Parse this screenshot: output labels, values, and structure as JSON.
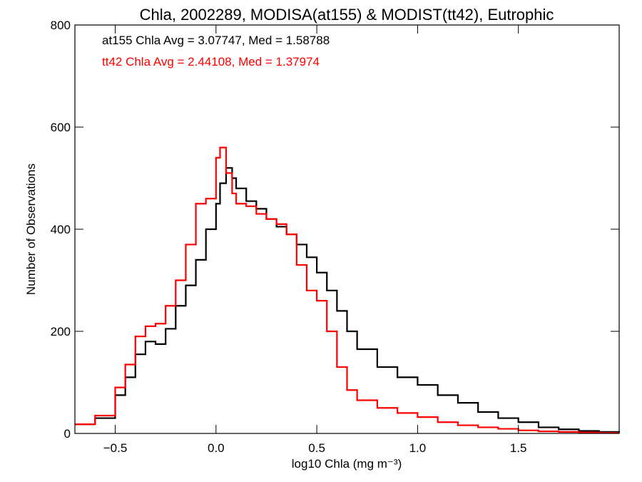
{
  "chart_data": {
    "type": "line",
    "title": "Chla, 2002289, MODISA(at155) & MODIST(tt42), Eutrophic",
    "xlabel": "log10 Chla (mg m⁻³)",
    "ylabel": "Number of Observations",
    "xlim": [
      -0.7,
      2.0
    ],
    "ylim": [
      0,
      800
    ],
    "x_ticks": [
      "−0.5",
      "0.0",
      "0.5",
      "1.0",
      "1.5"
    ],
    "x_tick_values": [
      -0.5,
      0.0,
      0.5,
      1.0,
      1.5
    ],
    "y_ticks": [
      "0",
      "200",
      "400",
      "600",
      "800"
    ],
    "y_tick_values": [
      0,
      200,
      400,
      600,
      800
    ],
    "grid": false,
    "annotations": [
      {
        "text": "at155 Chla Avg = 3.07747, Med = 1.58788",
        "color": "#000000"
      },
      {
        "text": "tt42 Chla Avg = 2.44108, Med = 1.37974",
        "color": "#ff0000"
      }
    ],
    "series": [
      {
        "color": "#000000",
        "points": [
          [
            -0.7,
            18
          ],
          [
            -0.6,
            30
          ],
          [
            -0.5,
            75
          ],
          [
            -0.45,
            110
          ],
          [
            -0.4,
            155
          ],
          [
            -0.35,
            180
          ],
          [
            -0.3,
            175
          ],
          [
            -0.25,
            205
          ],
          [
            -0.2,
            250
          ],
          [
            -0.15,
            290
          ],
          [
            -0.1,
            340
          ],
          [
            -0.05,
            400
          ],
          [
            0.0,
            450
          ],
          [
            0.02,
            490
          ],
          [
            0.05,
            520
          ],
          [
            0.08,
            500
          ],
          [
            0.1,
            480
          ],
          [
            0.15,
            455
          ],
          [
            0.2,
            440
          ],
          [
            0.25,
            420
          ],
          [
            0.3,
            405
          ],
          [
            0.35,
            390
          ],
          [
            0.4,
            370
          ],
          [
            0.45,
            345
          ],
          [
            0.5,
            315
          ],
          [
            0.55,
            280
          ],
          [
            0.6,
            240
          ],
          [
            0.65,
            200
          ],
          [
            0.7,
            165
          ],
          [
            0.8,
            130
          ],
          [
            0.9,
            110
          ],
          [
            1.0,
            95
          ],
          [
            1.1,
            75
          ],
          [
            1.2,
            60
          ],
          [
            1.3,
            42
          ],
          [
            1.4,
            30
          ],
          [
            1.5,
            22
          ],
          [
            1.6,
            12
          ],
          [
            1.7,
            8
          ],
          [
            1.8,
            5
          ],
          [
            1.9,
            3
          ],
          [
            2.0,
            2
          ]
        ]
      },
      {
        "color": "#ff0000",
        "points": [
          [
            -0.7,
            18
          ],
          [
            -0.6,
            35
          ],
          [
            -0.5,
            90
          ],
          [
            -0.45,
            135
          ],
          [
            -0.4,
            190
          ],
          [
            -0.35,
            210
          ],
          [
            -0.3,
            215
          ],
          [
            -0.25,
            250
          ],
          [
            -0.2,
            300
          ],
          [
            -0.15,
            370
          ],
          [
            -0.1,
            450
          ],
          [
            -0.05,
            460
          ],
          [
            0.0,
            540
          ],
          [
            0.02,
            560
          ],
          [
            0.05,
            510
          ],
          [
            0.08,
            470
          ],
          [
            0.1,
            450
          ],
          [
            0.15,
            445
          ],
          [
            0.2,
            430
          ],
          [
            0.25,
            420
          ],
          [
            0.3,
            410
          ],
          [
            0.35,
            390
          ],
          [
            0.4,
            330
          ],
          [
            0.45,
            280
          ],
          [
            0.5,
            260
          ],
          [
            0.55,
            200
          ],
          [
            0.6,
            130
          ],
          [
            0.65,
            85
          ],
          [
            0.7,
            65
          ],
          [
            0.8,
            50
          ],
          [
            0.9,
            40
          ],
          [
            1.0,
            32
          ],
          [
            1.1,
            22
          ],
          [
            1.2,
            16
          ],
          [
            1.3,
            12
          ],
          [
            1.4,
            9
          ],
          [
            1.5,
            6
          ],
          [
            1.6,
            4
          ],
          [
            1.7,
            3
          ],
          [
            1.8,
            2
          ],
          [
            1.9,
            1
          ],
          [
            2.0,
            1
          ]
        ]
      }
    ]
  }
}
